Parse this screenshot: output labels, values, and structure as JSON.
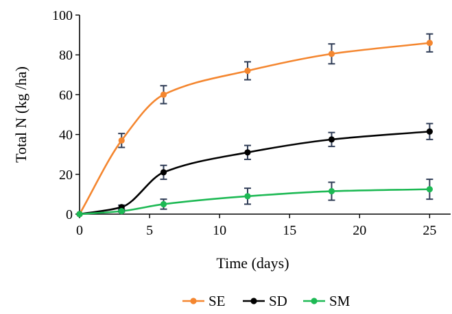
{
  "chart_data": {
    "type": "line",
    "title": "",
    "xlabel": "Time (days)",
    "ylabel": "Total N (kg /ha)",
    "xlim": [
      0,
      26.5
    ],
    "ylim": [
      0,
      100
    ],
    "x_ticks": [
      0,
      5,
      10,
      15,
      20,
      25
    ],
    "y_ticks": [
      0,
      20,
      40,
      60,
      80,
      100
    ],
    "grid": false,
    "legend_position": "bottom",
    "series": [
      {
        "name": "SE",
        "color": "#f4862f",
        "x": [
          0,
          3,
          6,
          12,
          18,
          25
        ],
        "y": [
          0,
          37,
          60,
          72,
          80.5,
          86
        ],
        "err": [
          0,
          3.5,
          4.5,
          4.5,
          5,
          4.5
        ]
      },
      {
        "name": "SD",
        "color": "#000000",
        "x": [
          0,
          3,
          6,
          12,
          18,
          25
        ],
        "y": [
          0,
          3.5,
          21,
          31,
          37.5,
          41.5
        ],
        "err": [
          0,
          1,
          3.5,
          3.5,
          3.5,
          4
        ]
      },
      {
        "name": "SM",
        "color": "#1db954",
        "x": [
          0,
          3,
          6,
          12,
          18,
          25
        ],
        "y": [
          0,
          1.5,
          5,
          9,
          11.5,
          12.5
        ],
        "err": [
          0,
          0.5,
          2.5,
          4,
          4.5,
          5
        ]
      }
    ]
  }
}
